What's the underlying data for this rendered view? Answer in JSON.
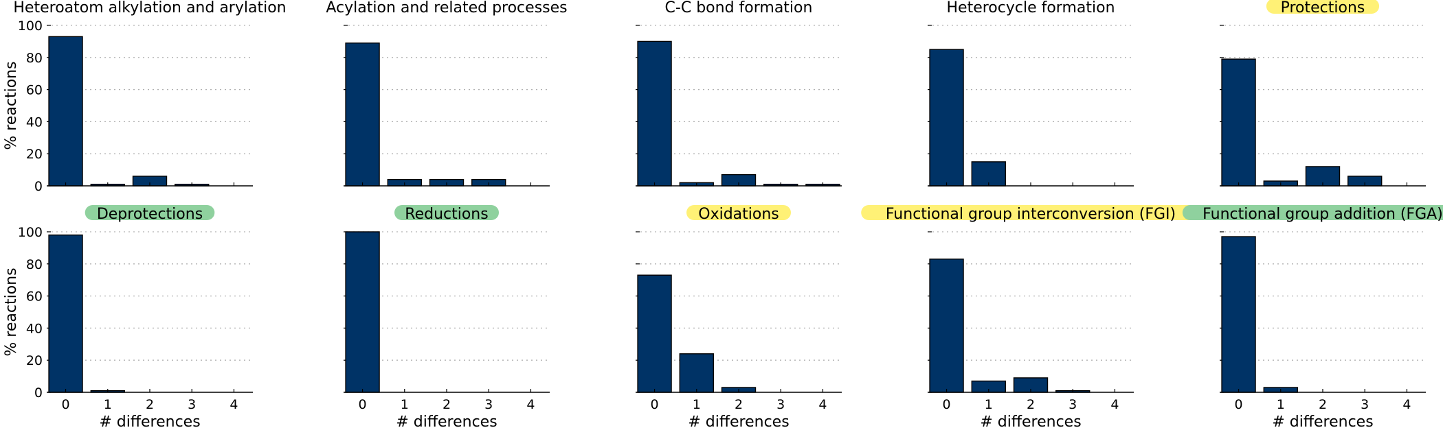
{
  "figure": {
    "ylabel": "% reactions",
    "xlabel": "# differences",
    "bar_color": "#003366",
    "highlight_colors": {
      "yellow": "#fff176",
      "green": "#8fd19e"
    },
    "yticks": [
      0,
      20,
      40,
      60,
      80,
      100
    ],
    "xticks": [
      0,
      1,
      2,
      3,
      4
    ]
  },
  "chart_data": [
    {
      "type": "bar",
      "title": "Heteroatom alkylation and arylation",
      "highlight": null,
      "categories": [
        0,
        1,
        2,
        3,
        4
      ],
      "values": [
        93,
        1,
        6,
        1,
        0
      ],
      "ylim": [
        0,
        100
      ],
      "ylabel": "% reactions",
      "xlabel": "",
      "grid": "y-dotted"
    },
    {
      "type": "bar",
      "title": "Acylation and related processes",
      "highlight": null,
      "categories": [
        0,
        1,
        2,
        3,
        4
      ],
      "values": [
        89,
        4,
        4,
        4,
        0
      ],
      "ylim": [
        0,
        100
      ],
      "ylabel": "",
      "xlabel": "",
      "grid": "y-dotted"
    },
    {
      "type": "bar",
      "title": "C-C bond formation",
      "highlight": null,
      "categories": [
        0,
        1,
        2,
        3,
        4
      ],
      "values": [
        90,
        2,
        7,
        1,
        1
      ],
      "ylim": [
        0,
        100
      ],
      "ylabel": "",
      "xlabel": "",
      "grid": "y-dotted"
    },
    {
      "type": "bar",
      "title": "Heterocycle formation",
      "highlight": null,
      "categories": [
        0,
        1,
        2,
        3,
        4
      ],
      "values": [
        85,
        15,
        0,
        0,
        0
      ],
      "ylim": [
        0,
        100
      ],
      "ylabel": "",
      "xlabel": "",
      "grid": "y-dotted"
    },
    {
      "type": "bar",
      "title": "Protections",
      "highlight": "yellow",
      "categories": [
        0,
        1,
        2,
        3,
        4
      ],
      "values": [
        79,
        3,
        12,
        6,
        0
      ],
      "ylim": [
        0,
        100
      ],
      "ylabel": "",
      "xlabel": "",
      "grid": "y-dotted"
    },
    {
      "type": "bar",
      "title": "Deprotections",
      "highlight": "green",
      "categories": [
        0,
        1,
        2,
        3,
        4
      ],
      "values": [
        98,
        1,
        0,
        0,
        0
      ],
      "ylim": [
        0,
        100
      ],
      "ylabel": "% reactions",
      "xlabel": "# differences",
      "grid": "y-dotted"
    },
    {
      "type": "bar",
      "title": "Reductions",
      "highlight": "green",
      "categories": [
        0,
        1,
        2,
        3,
        4
      ],
      "values": [
        100,
        0,
        0,
        0,
        0
      ],
      "ylim": [
        0,
        100
      ],
      "ylabel": "",
      "xlabel": "# differences",
      "grid": "y-dotted"
    },
    {
      "type": "bar",
      "title": "Oxidations",
      "highlight": "yellow",
      "categories": [
        0,
        1,
        2,
        3,
        4
      ],
      "values": [
        73,
        24,
        3,
        0,
        0
      ],
      "ylim": [
        0,
        100
      ],
      "ylabel": "",
      "xlabel": "# differences",
      "grid": "y-dotted"
    },
    {
      "type": "bar",
      "title": "Functional group interconversion (FGI)",
      "highlight": "yellow",
      "categories": [
        0,
        1,
        2,
        3,
        4
      ],
      "values": [
        83,
        7,
        9,
        1,
        0
      ],
      "ylim": [
        0,
        100
      ],
      "ylabel": "",
      "xlabel": "# differences",
      "grid": "y-dotted"
    },
    {
      "type": "bar",
      "title": "Functional group addition (FGA)",
      "highlight": "green",
      "categories": [
        0,
        1,
        2,
        3,
        4
      ],
      "values": [
        97,
        3,
        0,
        0,
        0
      ],
      "ylim": [
        0,
        100
      ],
      "ylabel": "",
      "xlabel": "# differences",
      "grid": "y-dotted"
    }
  ]
}
